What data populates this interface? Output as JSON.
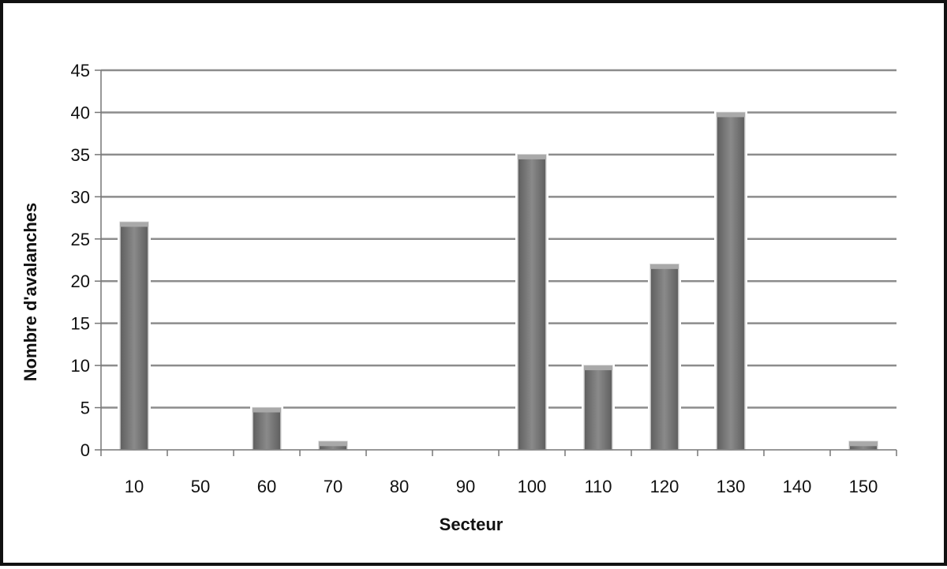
{
  "chart_data": {
    "type": "bar",
    "title": "",
    "xlabel": "Secteur",
    "ylabel": "Nombre d'avalanches",
    "categories": [
      "10",
      "50",
      "60",
      "70",
      "80",
      "90",
      "100",
      "110",
      "120",
      "130",
      "140",
      "150"
    ],
    "values": [
      27,
      0,
      5,
      1,
      0,
      0,
      35,
      10,
      22,
      40,
      0,
      1
    ],
    "ylim": [
      0,
      45
    ],
    "yticks": [
      0,
      5,
      10,
      15,
      20,
      25,
      30,
      35,
      40,
      45
    ],
    "grid": true,
    "legend": "none",
    "colors": {
      "bar": "#7a7a7a",
      "bar_edge": "#d8d8d8",
      "grid": "#8c8c8c",
      "axis": "#777777",
      "frame": "#111111"
    }
  }
}
